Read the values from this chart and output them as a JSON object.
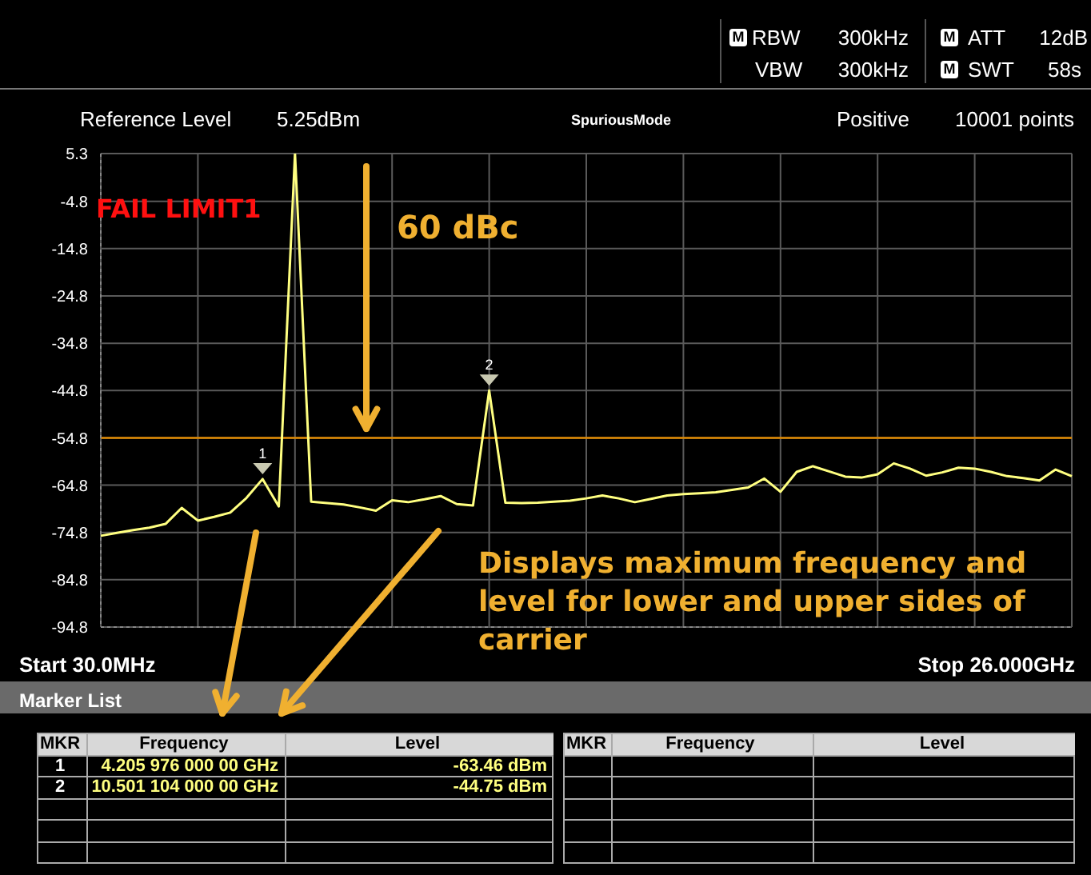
{
  "chart_data": {
    "type": "line",
    "categories": [
      null,
      null,
      null,
      null,
      null,
      null,
      null,
      null,
      null,
      null,
      null,
      null,
      null,
      null,
      null,
      null,
      null,
      null,
      null,
      null,
      null,
      null,
      null,
      null,
      null,
      null,
      null,
      null,
      null,
      null,
      null,
      null,
      null,
      null,
      null,
      null,
      null,
      null,
      null,
      null,
      null,
      null,
      null,
      null,
      null,
      null,
      null,
      null,
      null,
      null,
      null,
      null,
      null,
      null,
      null,
      null,
      null,
      null,
      null,
      null,
      null
    ],
    "series": [
      {
        "color": "#ffff80",
        "values": [
          -75.5,
          -74.9,
          -74.3,
          -73.8,
          -73,
          -69.6,
          -72.3,
          -71.5,
          -70.6,
          -67.5,
          -63.5,
          -69.3,
          5.3,
          -68.3,
          -68.6,
          -68.9,
          -69.5,
          -70.2,
          -68,
          -68.4,
          -67.8,
          -67.1,
          -68.8,
          -69.1,
          -44.8,
          -68.5,
          -68.6,
          -68.5,
          -68.3,
          -68.1,
          -67.6,
          -67,
          -67.6,
          -68.4,
          -67.7,
          -67,
          -66.7,
          -66.5,
          -66.3,
          -65.8,
          -65.3,
          -63.4,
          -66.2,
          -62,
          -60.8,
          -61.9,
          -63,
          -63.2,
          -62.5,
          -60.2,
          -61.3,
          -62.8,
          -62.1,
          -61.1,
          -61.3,
          -62,
          -62.9,
          -63.3,
          -63.8,
          -61.5,
          -62.9
        ]
      }
    ],
    "ylim": [
      -94.8,
      5.3
    ],
    "yticks": [
      5.3,
      -4.8,
      -14.8,
      -24.8,
      -34.8,
      -44.8,
      -54.8,
      -64.8,
      -74.8,
      -84.8,
      -94.8
    ],
    "tick_labels": "y",
    "grid": true,
    "marker": "none",
    "line_style": "solid",
    "ref_lines": [
      {
        "axis": "y",
        "value": -54.8,
        "color": "#e08a00"
      }
    ],
    "annotations": [
      "RBW",
      "300kHz",
      "VBW",
      "300kHz",
      "ATT",
      "12dB",
      "SWT",
      "58s",
      "Reference Level",
      "5.25dBm",
      "SpuriousMode",
      "Positive",
      "10001 points",
      "FAIL LIMIT1",
      "60 dBc",
      "Displays maximum frequency and level for lower and upper sides of carrier",
      "Start 30.0MHz",
      "Stop 26.000GHz",
      "Marker List",
      "MKR",
      "Frequency",
      "Level",
      "1",
      "4.205 976 000 00 GHz",
      "-63.46 dBm",
      "2",
      "10.501 104 000 00 GHz",
      "-44.75 dBm",
      "MKR",
      "Frequency",
      "Level",
      "M",
      "M",
      "M",
      "1",
      "2"
    ]
  }
}
